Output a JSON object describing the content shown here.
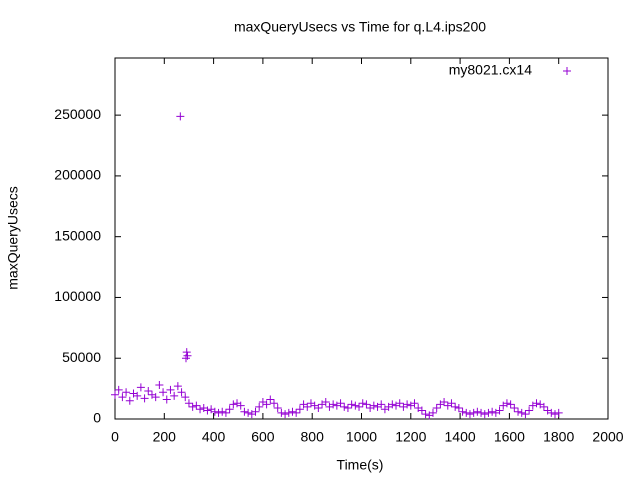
{
  "chart_data": {
    "type": "scatter",
    "title": "maxQueryUsecs vs Time for q.L4.ips200",
    "x_label": "Time(s)",
    "y_label": "maxQueryUsecs",
    "xlim": [
      0,
      2000
    ],
    "ylim": [
      0,
      297000
    ],
    "xticks": [
      0,
      200,
      400,
      600,
      800,
      1000,
      1200,
      1400,
      1600,
      1800,
      2000
    ],
    "yticks": [
      0,
      50000,
      100000,
      150000,
      200000,
      250000
    ],
    "legend": "top-right",
    "series": [
      {
        "name": "my8021.cx14",
        "color": "#9400d3",
        "x": [
          0,
          15,
          30,
          45,
          60,
          75,
          90,
          105,
          120,
          135,
          150,
          165,
          180,
          195,
          210,
          225,
          240,
          255,
          270,
          285,
          300,
          315,
          330,
          345,
          360,
          375,
          390,
          405,
          420,
          435,
          450,
          465,
          480,
          495,
          510,
          525,
          540,
          555,
          570,
          585,
          600,
          615,
          630,
          645,
          660,
          675,
          690,
          705,
          720,
          735,
          750,
          765,
          780,
          795,
          810,
          825,
          840,
          855,
          870,
          885,
          900,
          915,
          930,
          945,
          960,
          975,
          990,
          1005,
          1020,
          1035,
          1050,
          1065,
          1080,
          1095,
          1110,
          1125,
          1140,
          1155,
          1170,
          1185,
          1200,
          1215,
          1230,
          1245,
          1260,
          1275,
          1290,
          1305,
          1320,
          1335,
          1350,
          1365,
          1380,
          1395,
          1410,
          1425,
          1440,
          1455,
          1470,
          1485,
          1500,
          1515,
          1530,
          1545,
          1560,
          1575,
          1590,
          1605,
          1620,
          1635,
          1650,
          1665,
          1680,
          1695,
          1710,
          1725,
          1740,
          1755,
          1770,
          1785,
          1800,
          265,
          288,
          291,
          294
        ],
        "values": [
          20000,
          24000,
          18000,
          22000,
          15000,
          21000,
          19000,
          26000,
          17000,
          23000,
          20000,
          18000,
          28000,
          22000,
          16000,
          24000,
          19000,
          27000,
          22000,
          18000,
          13000,
          10000,
          11000,
          8000,
          9000,
          7000,
          8000,
          6000,
          5000,
          6000,
          5000,
          8000,
          12000,
          13000,
          11000,
          6000,
          5000,
          4000,
          6000,
          10000,
          14000,
          12000,
          16000,
          13000,
          9000,
          5000,
          4000,
          5000,
          6000,
          5000,
          8000,
          12000,
          10000,
          13000,
          11000,
          9000,
          12000,
          14000,
          10000,
          12000,
          11000,
          13000,
          10000,
          9000,
          12000,
          11000,
          10000,
          13000,
          12000,
          9000,
          11000,
          10000,
          12000,
          8000,
          10000,
          12000,
          11000,
          13000,
          10000,
          12000,
          11000,
          13000,
          9000,
          7000,
          4000,
          3000,
          5000,
          9000,
          12000,
          14000,
          11000,
          13000,
          10000,
          9000,
          6000,
          5000,
          4000,
          5000,
          6000,
          5000,
          4000,
          5000,
          6000,
          5000,
          7000,
          11000,
          13000,
          12000,
          9000,
          6000,
          5000,
          4000,
          7000,
          11000,
          13000,
          12000,
          10000,
          7000,
          5000,
          4000,
          5000,
          249000,
          50000,
          55000,
          52000
        ]
      }
    ]
  }
}
